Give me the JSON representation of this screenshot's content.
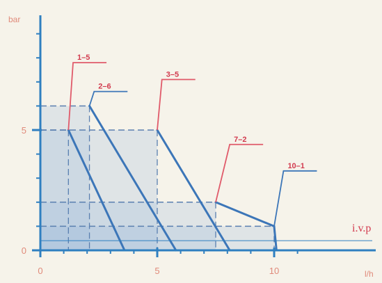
{
  "chart_data": {
    "type": "line",
    "title": "",
    "ylabel": "bar",
    "xlabel": "l/h",
    "xlim": [
      0,
      11.8
    ],
    "ylim": [
      0,
      9.6
    ],
    "x_ticks": [
      0,
      5,
      10
    ],
    "y_ticks": [
      0,
      5
    ],
    "x_tick_labels": [
      "0",
      "5",
      "10"
    ],
    "y_tick_labels": [
      "0",
      "5"
    ],
    "annotation": "i.v.p",
    "series": [
      {
        "name": "1–5",
        "points": [
          [
            1.2,
            5.0
          ],
          [
            3.6,
            0.0
          ]
        ],
        "tag": [
          1.4,
          7.8
        ]
      },
      {
        "name": "2–6",
        "points": [
          [
            2.1,
            6.0
          ],
          [
            5.8,
            0.0
          ]
        ],
        "tag": [
          2.3,
          6.6
        ]
      },
      {
        "name": "3–5",
        "points": [
          [
            5.0,
            5.0
          ],
          [
            8.1,
            0.0
          ]
        ],
        "tag": [
          5.2,
          7.1
        ]
      },
      {
        "name": "7–2",
        "points": [
          [
            7.5,
            2.0
          ],
          [
            10.0,
            1.0
          ]
        ],
        "tag": [
          8.1,
          4.4
        ]
      },
      {
        "name": "10–1",
        "points": [
          [
            10.0,
            1.0
          ],
          [
            10.1,
            0.0
          ]
        ],
        "tag": [
          10.4,
          3.3
        ]
      }
    ],
    "operating_regions": [
      {
        "x": 2.1,
        "y": 6.0
      },
      {
        "x": 5.0,
        "y": 5.0
      },
      {
        "x": 7.5,
        "y": 2.0
      },
      {
        "x": 10.0,
        "y": 1.0
      }
    ],
    "colors": {
      "axis": "#2f7fc0",
      "curve": "#3c76b8",
      "leader": "#e05a6a",
      "region": "#8bb3dc",
      "guide": "#5a7fb0"
    }
  }
}
